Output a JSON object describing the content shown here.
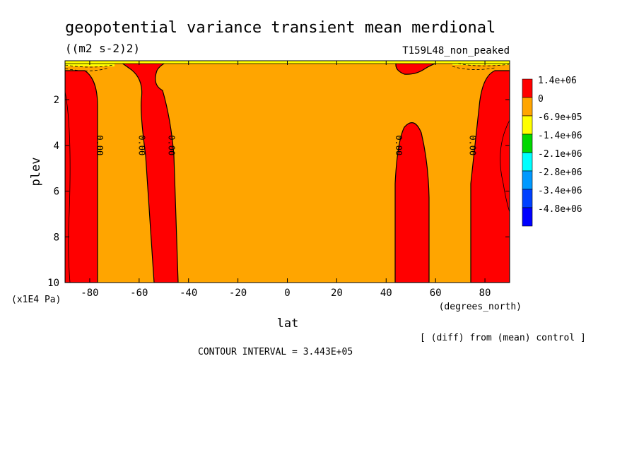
{
  "chart_data": {
    "type": "contour",
    "title": "geopotential variance transient mean merdional",
    "units": "((m2 s-2)2)",
    "run_label": "T159L48_non_peaked",
    "xlabel": "lat",
    "x_units": "(degrees_north)",
    "ylabel": "plev",
    "y_units": "(x1E4 Pa)",
    "xlim": [
      -90,
      90
    ],
    "ylim": [
      10,
      0.3
    ],
    "x_ticks": [
      "-80",
      "-60",
      "-40",
      "-20",
      "0",
      "20",
      "40",
      "60",
      "80"
    ],
    "x_tick_values": [
      -80,
      -60,
      -40,
      -20,
      0,
      20,
      40,
      60,
      80
    ],
    "y_ticks": [
      "2",
      "4",
      "6",
      "8",
      "10"
    ],
    "y_tick_values": [
      2,
      4,
      6,
      8,
      10
    ],
    "contour_labels": [
      "0.00",
      "0.00",
      "0.00",
      "0.00",
      "0.00"
    ],
    "contour_label_lats": [
      -76,
      -59,
      -47,
      45,
      75
    ],
    "contour_label_plev": 4,
    "legend": {
      "entries": [
        {
          "label": "1.4e+06",
          "color": "#ff0000"
        },
        {
          "label": "0",
          "color": "#ffa500"
        },
        {
          "label": "-6.9e+05",
          "color": "#ffff00"
        },
        {
          "label": "-1.4e+06",
          "color": "#00d800"
        },
        {
          "label": "-2.1e+06",
          "color": "#00ffff"
        },
        {
          "label": "-2.8e+06",
          "color": "#0099ff"
        },
        {
          "label": "-3.4e+06",
          "color": "#0040ff"
        },
        {
          "label": "-4.8e+06",
          "color": "#0000ff"
        }
      ]
    },
    "regions_positive": [
      {
        "lat_from": -90,
        "lat_to": -78
      },
      {
        "lat_from": -62,
        "lat_to": -45
      },
      {
        "lat_from": 43,
        "lat_to": 58
      },
      {
        "lat_from": 74,
        "lat_to": 90
      }
    ],
    "note": "[ (diff) from (mean) control ]",
    "contour_interval": "CONTOUR INTERVAL = 3.443E+05"
  }
}
